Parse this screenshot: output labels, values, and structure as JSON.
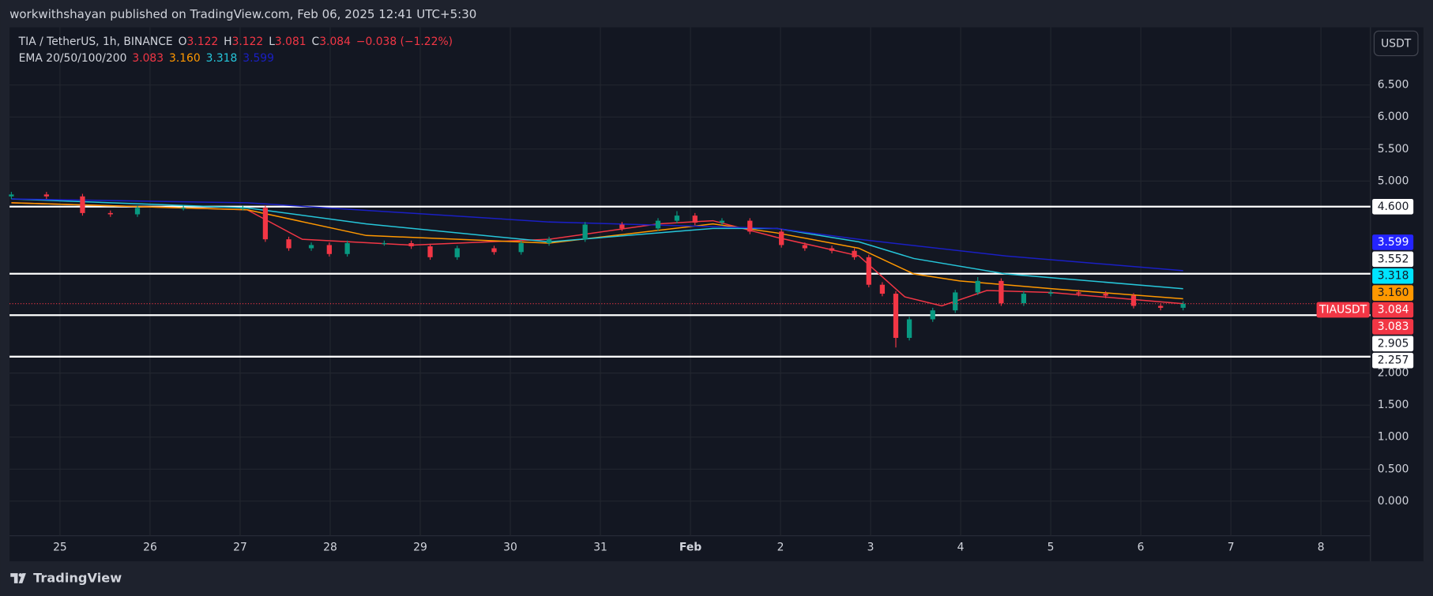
{
  "header": {
    "published": "workwithshayan published on TradingView.com, Feb 06, 2025 12:41 UTC+5:30",
    "currency_button": "USDT",
    "brand": "TradingView"
  },
  "chart_data": {
    "type": "candlestick",
    "title": "TIA / TetherUS, 1h, BINANCE",
    "ohlc": [
      {
        "key": "O",
        "value": "3.122"
      },
      {
        "key": "H",
        "value": "3.122"
      },
      {
        "key": "L",
        "value": "3.081"
      },
      {
        "key": "C",
        "value": "3.084"
      }
    ],
    "change": "−0.038 (−1.22%)",
    "legend": "EMA 20/50/100/200",
    "up_color": "#089981",
    "down_color": "#f23645",
    "candles": {
      "x": [
        -0.54,
        -0.15,
        0.25,
        0.56,
        0.86,
        1.37,
        2.03,
        2.28,
        2.54,
        2.79,
        2.99,
        3.19,
        3.6,
        3.9,
        4.11,
        4.41,
        4.82,
        5.12,
        5.43,
        5.83,
        6.24,
        6.64,
        6.85,
        7.05,
        7.35,
        7.66,
        8.01,
        8.27,
        8.57,
        8.82,
        8.98,
        9.13,
        9.28,
        9.43,
        9.69,
        9.94,
        10.19,
        10.45,
        10.7,
        11.0,
        11.31,
        11.61,
        11.92,
        12.22,
        12.47
      ],
      "open": [
        4.76,
        4.79,
        4.76,
        4.5,
        4.48,
        4.58,
        4.58,
        4.58,
        4.09,
        3.95,
        4.0,
        3.86,
        4.03,
        4.03,
        3.98,
        3.81,
        3.95,
        3.89,
        4.03,
        4.09,
        4.32,
        4.26,
        4.38,
        4.46,
        4.35,
        4.38,
        4.21,
        4.0,
        3.95,
        3.91,
        3.81,
        3.38,
        3.24,
        2.55,
        2.84,
        2.98,
        3.26,
        3.44,
        3.09,
        3.24,
        3.26,
        3.24,
        3.21,
        3.05,
        3.02
      ],
      "high": [
        4.83,
        4.83,
        4.8,
        4.54,
        4.62,
        4.62,
        4.62,
        4.62,
        4.13,
        4.04,
        4.04,
        4.07,
        4.07,
        4.07,
        4.02,
        3.99,
        3.99,
        4.07,
        4.13,
        4.36,
        4.36,
        4.42,
        4.53,
        4.5,
        4.42,
        4.42,
        4.25,
        4.04,
        3.99,
        3.95,
        3.85,
        3.42,
        3.28,
        2.88,
        3.02,
        3.3,
        3.5,
        3.48,
        3.28,
        3.3,
        3.3,
        3.28,
        3.25,
        3.09,
        3.122
      ],
      "low": [
        4.72,
        4.72,
        4.46,
        4.44,
        4.44,
        4.54,
        4.54,
        4.05,
        3.91,
        3.91,
        3.82,
        3.82,
        3.99,
        3.94,
        3.77,
        3.77,
        3.85,
        3.85,
        3.99,
        4.05,
        4.22,
        4.22,
        4.34,
        4.31,
        4.31,
        4.17,
        3.96,
        3.91,
        3.87,
        3.77,
        3.34,
        3.2,
        2.4,
        2.51,
        2.8,
        2.94,
        3.22,
        3.05,
        3.05,
        3.2,
        3.2,
        3.17,
        3.01,
        2.98,
        2.98
      ],
      "close": [
        4.79,
        4.76,
        4.5,
        4.48,
        4.58,
        4.58,
        4.58,
        4.09,
        3.95,
        4.0,
        3.86,
        4.03,
        4.03,
        3.98,
        3.81,
        3.95,
        3.89,
        4.03,
        4.09,
        4.32,
        4.26,
        4.38,
        4.46,
        4.35,
        4.38,
        4.21,
        4.0,
        3.95,
        3.91,
        3.81,
        3.38,
        3.24,
        2.55,
        2.84,
        2.98,
        3.26,
        3.44,
        3.09,
        3.24,
        3.26,
        3.24,
        3.21,
        3.05,
        3.02,
        3.084
      ]
    },
    "series": [
      {
        "color": "#f23645",
        "tag_color": "#f23645",
        "last_label": "3.083",
        "x": [
          -0.54,
          2.08,
          2.69,
          3.9,
          5.43,
          6.64,
          7.25,
          7.96,
          8.87,
          9.38,
          9.79,
          10.29,
          11.0,
          12.47
        ],
        "values": [
          4.66,
          4.55,
          4.09,
          4.0,
          4.09,
          4.33,
          4.38,
          4.12,
          3.83,
          3.19,
          3.05,
          3.29,
          3.26,
          3.083
        ]
      },
      {
        "color": "#ff9800",
        "tag_color": "#ff9800",
        "last_label": "3.160",
        "x": [
          -0.54,
          2.08,
          3.4,
          5.43,
          7.25,
          7.96,
          8.87,
          9.48,
          9.99,
          11.0,
          12.47
        ],
        "values": [
          4.66,
          4.55,
          4.15,
          4.03,
          4.33,
          4.19,
          3.95,
          3.55,
          3.44,
          3.32,
          3.16
        ]
      },
      {
        "color": "#26c6da",
        "tag_color": "#00e5ff",
        "last_label": "3.318",
        "x": [
          -0.54,
          2.08,
          3.4,
          5.43,
          7.25,
          7.96,
          8.87,
          9.48,
          10.5,
          12.47
        ],
        "values": [
          4.72,
          4.58,
          4.33,
          4.05,
          4.26,
          4.26,
          4.05,
          3.79,
          3.55,
          3.318
        ]
      },
      {
        "color": "#1a1fc4",
        "tag_color": "#2424ff",
        "last_label": "3.599",
        "x": [
          -0.54,
          2.08,
          5.43,
          7.96,
          8.87,
          10.5,
          12.47
        ],
        "values": [
          4.72,
          4.66,
          4.36,
          4.26,
          4.09,
          3.83,
          3.599
        ]
      }
    ],
    "levels": [
      {
        "value": 4.6,
        "label": "4.600"
      },
      {
        "value": 3.552,
        "label": "3.552"
      },
      {
        "value": 2.905,
        "label": "2.905"
      },
      {
        "value": 2.257,
        "label": "2.257"
      }
    ],
    "price": {
      "symbol": "TIAUSDT",
      "value": 3.084,
      "label": "3.084"
    },
    "xlim": [
      -0.56,
      14.55
    ],
    "xticks": [
      {
        "value": 0,
        "label": "25"
      },
      {
        "value": 1,
        "label": "26"
      },
      {
        "value": 2,
        "label": "27"
      },
      {
        "value": 3,
        "label": "28"
      },
      {
        "value": 4,
        "label": "29"
      },
      {
        "value": 5,
        "label": "30"
      },
      {
        "value": 6,
        "label": "31"
      },
      {
        "value": 7,
        "label": "Feb"
      },
      {
        "value": 8,
        "label": "2"
      },
      {
        "value": 9,
        "label": "3"
      },
      {
        "value": 10,
        "label": "4"
      },
      {
        "value": 11,
        "label": "5"
      },
      {
        "value": 12,
        "label": "6"
      },
      {
        "value": 13,
        "label": "7"
      },
      {
        "value": 14,
        "label": "8"
      }
    ],
    "ylim": [
      -0.94,
      7.4
    ],
    "yticks": [
      {
        "value": 6.5,
        "label": "6.500"
      },
      {
        "value": 6,
        "label": "6.000"
      },
      {
        "value": 5.5,
        "label": "5.500"
      },
      {
        "value": 5,
        "label": "5.000"
      },
      {
        "value": 2,
        "label": "2.000"
      },
      {
        "value": 1.5,
        "label": "1.500"
      },
      {
        "value": 1,
        "label": "1.000"
      },
      {
        "value": 0.5,
        "label": "0.500"
      },
      {
        "value": 0,
        "label": "0.000"
      }
    ],
    "grid": true
  }
}
